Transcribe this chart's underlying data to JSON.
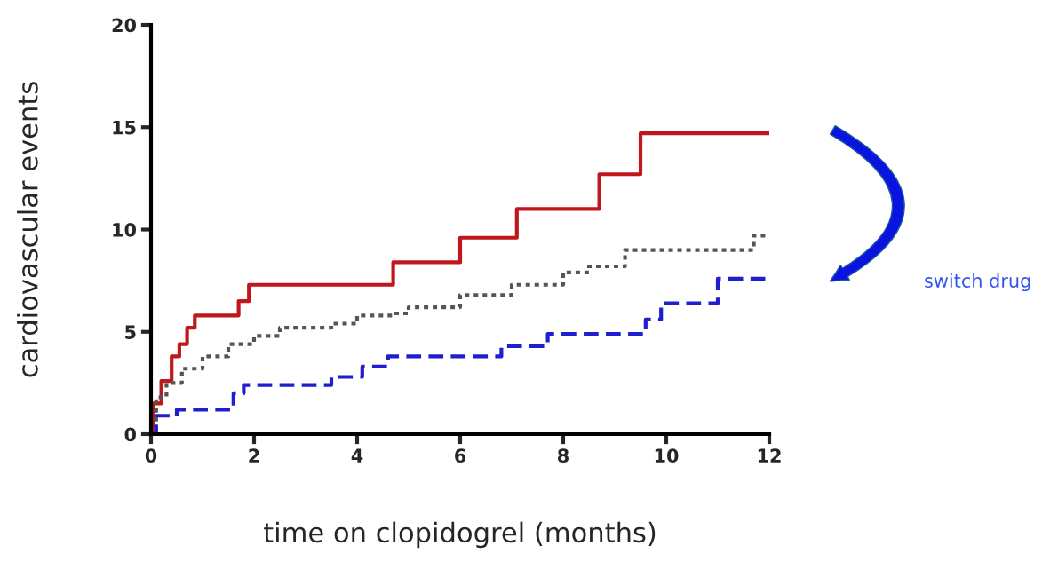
{
  "chart_data": {
    "type": "step",
    "xlabel": "time on clopidogrel (months)",
    "ylabel": "cardiovascular events",
    "annotations": [
      "switch drug"
    ],
    "xlim": [
      0,
      12
    ],
    "ylim": [
      0,
      20
    ],
    "xticks": [
      0,
      2,
      4,
      6,
      8,
      10,
      12
    ],
    "yticks": [
      0,
      5,
      10,
      15,
      20
    ],
    "grid": false,
    "legend": false,
    "series": [
      {
        "color": "#c0171c",
        "line_style": "solid",
        "x": [
          0,
          0.05,
          0.2,
          0.4,
          0.55,
          0.7,
          0.85,
          1.7,
          1.9,
          4.7,
          6.0,
          7.1,
          8.7,
          9.5,
          12
        ],
        "values": [
          0,
          1.5,
          2.6,
          3.8,
          4.4,
          5.2,
          5.8,
          6.5,
          7.3,
          8.4,
          9.6,
          11.0,
          12.7,
          14.7,
          14.7
        ]
      },
      {
        "color": "#555555",
        "line_style": "dotted",
        "x": [
          0,
          0.1,
          0.3,
          0.6,
          1.0,
          1.5,
          2.0,
          2.5,
          3.5,
          4.0,
          4.7,
          5.0,
          6.0,
          7.0,
          8.0,
          8.5,
          9.2,
          11.5,
          11.7,
          12
        ],
        "values": [
          0,
          1.8,
          2.5,
          3.2,
          3.8,
          4.4,
          4.8,
          5.2,
          5.4,
          5.8,
          5.9,
          6.2,
          6.8,
          7.3,
          7.9,
          8.2,
          9.0,
          9.0,
          9.7,
          9.7
        ]
      },
      {
        "color": "#1f1fd0",
        "line_style": "dashed",
        "x": [
          0,
          0.1,
          0.5,
          1.6,
          1.8,
          3.5,
          4.1,
          4.6,
          6.8,
          7.7,
          9.6,
          9.9,
          11.0,
          12
        ],
        "values": [
          0,
          0.9,
          1.2,
          2.0,
          2.4,
          2.8,
          3.3,
          3.8,
          4.3,
          4.9,
          5.6,
          6.4,
          7.6,
          7.6
        ]
      }
    ]
  }
}
